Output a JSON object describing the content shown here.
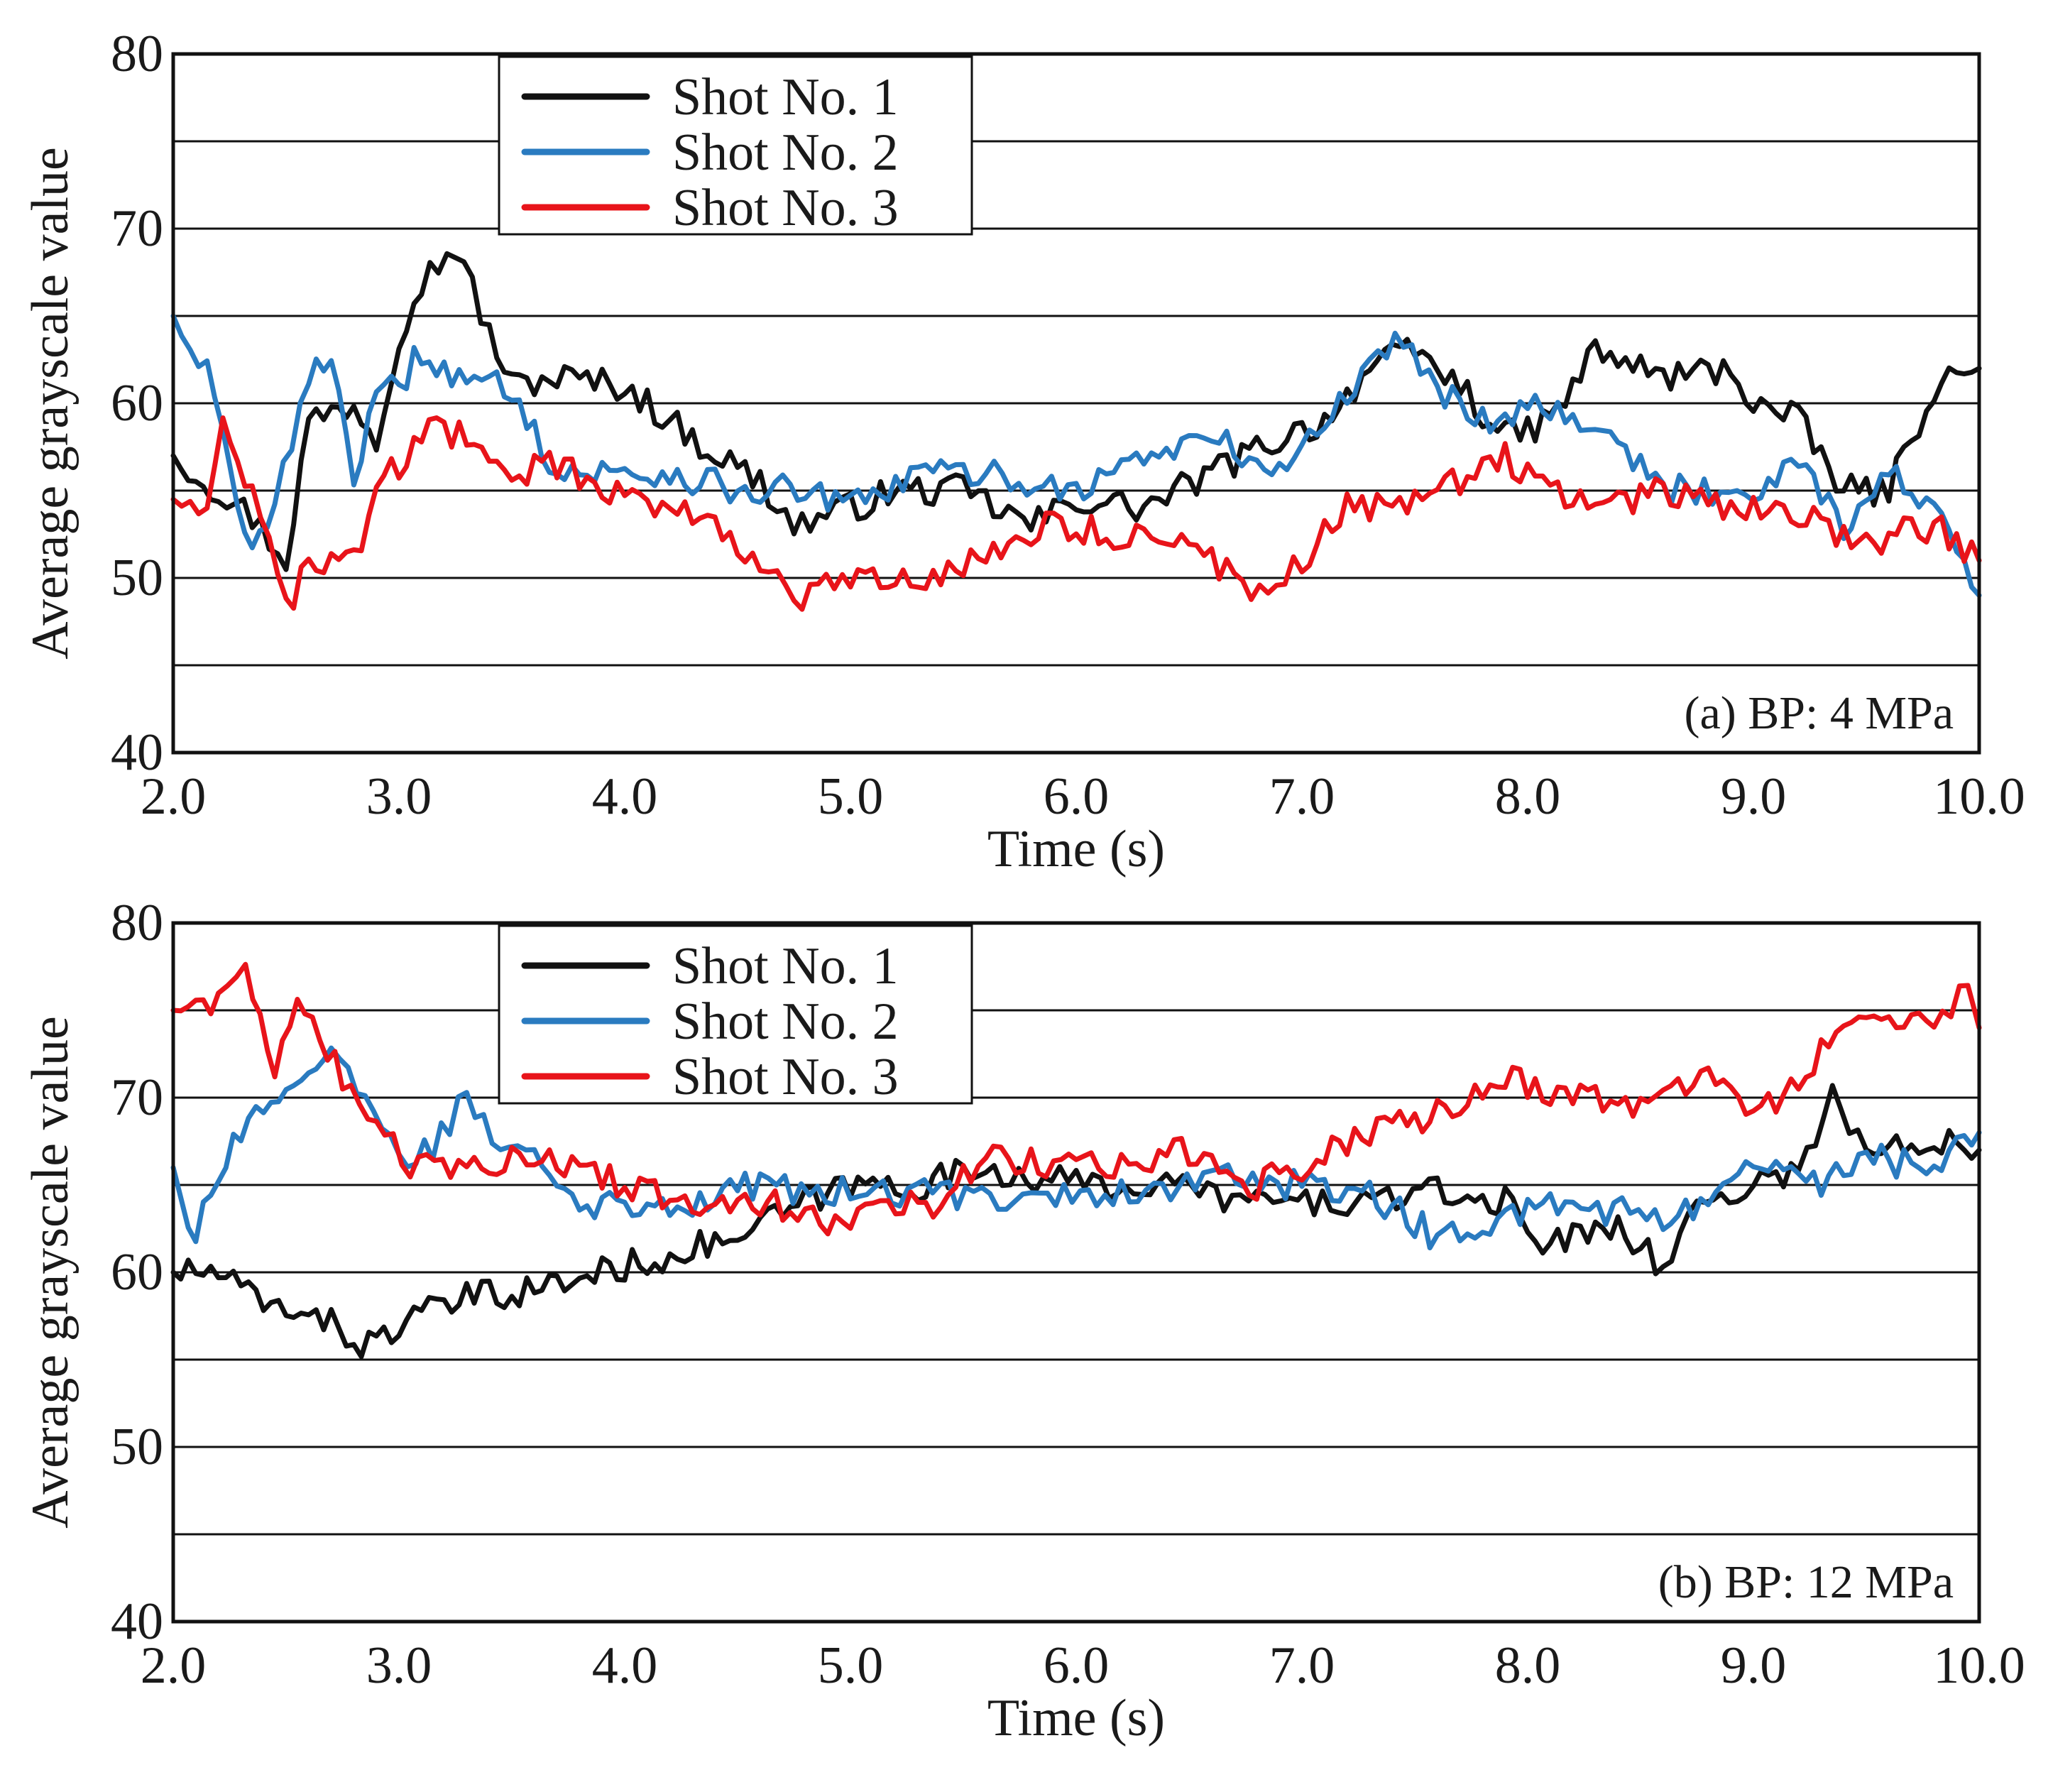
{
  "chart_data": [
    {
      "type": "line",
      "panel": "a",
      "annotation": "(a) BP: 4 MPa",
      "xlabel": "Time (s)",
      "ylabel": "Average grayscale value",
      "xlim": [
        2.0,
        10.0
      ],
      "ylim": [
        40,
        80
      ],
      "xticks": [
        "2.0",
        "3.0",
        "4.0",
        "5.0",
        "6.0",
        "7.0",
        "8.0",
        "9.0",
        "10.0"
      ],
      "yticks": [
        "40",
        "50",
        "60",
        "70",
        "80"
      ],
      "gridlines_y": [
        45,
        50,
        55,
        60,
        65,
        70,
        75
      ],
      "legend": [
        "Shot No. 1",
        "Shot No. 2",
        "Shot No. 3"
      ],
      "series": [
        {
          "name": "Shot No. 1",
          "color": "#111111",
          "x": [
            2.0,
            2.2,
            2.35,
            2.5,
            2.6,
            2.8,
            2.9,
            3.0,
            3.1,
            3.25,
            3.4,
            3.5,
            3.7,
            4.0,
            4.3,
            4.6,
            4.75,
            5.0,
            5.2,
            5.5,
            5.8,
            6.0,
            6.3,
            6.6,
            6.9,
            7.1,
            7.3,
            7.5,
            7.7,
            7.9,
            8.1,
            8.3,
            8.6,
            8.9,
            9.0,
            9.2,
            9.4,
            9.6,
            9.8,
            10.0
          ],
          "values": [
            57,
            55,
            53.5,
            51,
            59,
            60,
            58,
            64,
            67,
            69,
            64,
            61,
            61.5,
            61,
            58,
            55.5,
            53,
            54,
            55,
            55,
            53,
            54.5,
            54,
            56,
            58,
            59,
            62,
            63,
            61,
            58,
            59,
            63,
            61.5,
            62,
            60,
            59,
            55,
            55,
            61,
            62
          ]
        },
        {
          "name": "Shot No. 2",
          "color": "#2a7bc0",
          "x": [
            2.0,
            2.15,
            2.25,
            2.35,
            2.45,
            2.6,
            2.7,
            2.8,
            2.9,
            3.0,
            3.1,
            3.3,
            3.5,
            3.7,
            3.9,
            4.2,
            4.5,
            4.8,
            5.0,
            5.3,
            5.6,
            6.0,
            6.3,
            6.6,
            6.9,
            7.1,
            7.3,
            7.45,
            7.6,
            7.8,
            8.0,
            8.3,
            8.6,
            9.0,
            9.2,
            9.4,
            9.6,
            9.8,
            10.0
          ],
          "values": [
            65,
            62,
            56,
            51,
            55,
            61,
            63,
            56,
            60,
            61,
            63,
            61,
            61,
            56,
            56,
            56,
            55,
            55,
            54,
            56,
            56,
            55,
            57,
            58,
            56,
            59,
            62,
            64,
            61,
            59,
            60,
            59,
            55,
            55,
            57,
            53,
            56,
            54,
            49
          ]
        },
        {
          "name": "Shot No. 3",
          "color": "#e8141a",
          "x": [
            2.0,
            2.15,
            2.22,
            2.35,
            2.5,
            2.6,
            2.8,
            2.9,
            3.0,
            3.1,
            3.3,
            3.5,
            3.7,
            4.0,
            4.3,
            4.6,
            4.75,
            5.0,
            5.3,
            5.6,
            5.9,
            6.2,
            6.5,
            6.7,
            6.85,
            7.0,
            7.2,
            7.4,
            7.6,
            7.9,
            8.1,
            8.3,
            8.6,
            8.9,
            9.2,
            9.5,
            9.8,
            10.0
          ],
          "values": [
            54.5,
            54.5,
            59,
            55,
            48,
            51,
            51,
            55,
            56.5,
            58.5,
            58,
            56,
            56.5,
            54.5,
            54,
            51,
            48.5,
            50,
            49.5,
            51.5,
            53,
            52.5,
            52,
            50,
            49,
            51,
            54,
            54,
            55,
            57,
            55,
            54,
            55,
            54,
            53.5,
            52,
            53,
            51
          ]
        }
      ]
    },
    {
      "type": "line",
      "panel": "b",
      "annotation": "(b) BP: 12 MPa",
      "xlabel": "Time (s)",
      "ylabel": "Average grayscale value",
      "xlim": [
        2.0,
        10.0
      ],
      "ylim": [
        40,
        80
      ],
      "xticks": [
        "2.0",
        "3.0",
        "4.0",
        "5.0",
        "6.0",
        "7.0",
        "8.0",
        "9.0",
        "10.0"
      ],
      "yticks": [
        "40",
        "50",
        "60",
        "70",
        "80"
      ],
      "gridlines_y": [
        45,
        50,
        55,
        60,
        65,
        70,
        75
      ],
      "legend": [
        "Shot No. 1",
        "Shot No. 2",
        "Shot No. 3"
      ],
      "series": [
        {
          "name": "Shot No. 1",
          "color": "#111111",
          "x": [
            2.0,
            2.2,
            2.4,
            2.6,
            2.8,
            2.9,
            3.0,
            3.3,
            3.6,
            3.9,
            4.2,
            4.5,
            4.8,
            5.0,
            5.3,
            5.6,
            6.0,
            6.4,
            6.8,
            7.2,
            7.6,
            7.9,
            8.1,
            8.4,
            8.6,
            8.75,
            9.0,
            9.2,
            9.35,
            9.5,
            9.7,
            9.9,
            10.0
          ],
          "values": [
            60,
            60,
            58,
            58,
            56,
            56,
            57,
            58.5,
            59,
            60,
            61,
            62,
            64,
            65,
            65,
            66,
            65,
            65,
            64,
            64,
            64.5,
            64,
            61.5,
            63,
            60,
            64,
            65,
            66,
            70,
            67,
            67,
            68,
            67
          ]
        },
        {
          "name": "Shot No. 2",
          "color": "#2a7bc0",
          "x": [
            2.0,
            2.1,
            2.2,
            2.3,
            2.5,
            2.7,
            2.85,
            3.0,
            3.15,
            3.3,
            3.45,
            3.6,
            3.8,
            4.0,
            4.3,
            4.6,
            5.0,
            5.4,
            5.8,
            6.2,
            6.6,
            7.0,
            7.3,
            7.6,
            7.9,
            8.2,
            8.6,
            8.8,
            9.0,
            9.3,
            9.5,
            9.7,
            9.9,
            10.0
          ],
          "values": [
            66,
            62,
            66,
            68,
            71,
            72,
            70,
            66.5,
            67,
            70.5,
            67,
            67.5,
            64,
            64,
            64,
            65,
            64.5,
            64.5,
            64.5,
            64.5,
            65.5,
            65,
            64.5,
            62,
            63,
            64,
            63,
            64,
            66,
            65,
            67,
            66,
            67,
            68
          ]
        },
        {
          "name": "Shot No. 3",
          "color": "#e8141a",
          "x": [
            2.0,
            2.1,
            2.2,
            2.32,
            2.45,
            2.55,
            2.75,
            2.9,
            3.05,
            3.3,
            3.6,
            3.8,
            4.0,
            4.3,
            4.6,
            4.9,
            5.2,
            5.4,
            5.6,
            5.9,
            6.2,
            6.5,
            6.8,
            7.0,
            7.3,
            7.6,
            7.9,
            8.2,
            8.5,
            8.8,
            9.0,
            9.2,
            9.4,
            9.6,
            9.8,
            9.95,
            10.0
          ],
          "values": [
            75,
            76,
            75.5,
            77,
            72,
            76,
            71,
            69,
            66,
            66,
            67,
            66,
            65,
            64,
            64,
            63,
            64,
            64,
            67,
            66,
            66,
            67,
            65,
            66,
            68,
            69,
            71,
            70,
            69.5,
            71,
            69,
            71,
            74,
            74,
            74,
            76,
            74
          ]
        }
      ]
    }
  ]
}
